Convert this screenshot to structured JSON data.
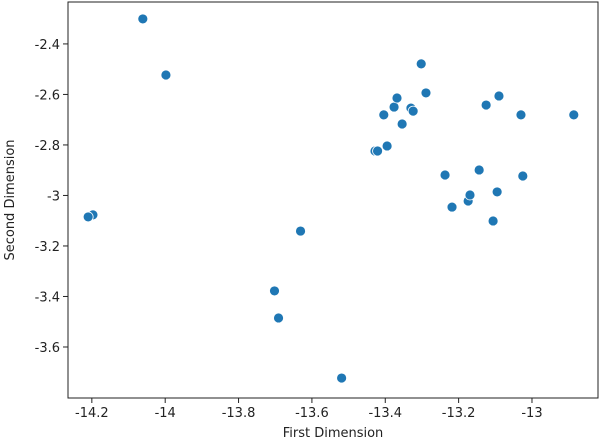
{
  "chart_data": {
    "type": "scatter",
    "xlabel": "First Dimension",
    "ylabel": "Second Dimension",
    "color": "#1f77b4",
    "x": [
      -14.061,
      -13.998,
      -14.197,
      -14.21,
      -13.631,
      -13.702,
      -13.691,
      -13.519,
      -13.428,
      -13.421,
      -13.395,
      -13.404,
      -13.376,
      -13.368,
      -13.354,
      -13.33,
      -13.324,
      -13.302,
      -13.289,
      -13.237,
      -13.218,
      -13.174,
      -13.169,
      -13.144,
      -13.125,
      -13.09,
      -13.095,
      -13.106,
      -13.03,
      -13.025,
      -12.886
    ],
    "y": [
      -2.301,
      -2.523,
      -3.077,
      -3.085,
      -3.141,
      -3.378,
      -3.485,
      -3.723,
      -2.824,
      -2.824,
      -2.804,
      -2.681,
      -2.65,
      -2.614,
      -2.717,
      -2.654,
      -2.666,
      -2.479,
      -2.594,
      -2.919,
      -3.046,
      -3.022,
      -2.998,
      -2.899,
      -2.642,
      -2.606,
      -2.986,
      -3.101,
      -2.681,
      -2.923,
      -2.681
    ],
    "xlim": [
      -14.265,
      -12.82
    ],
    "ylim": [
      -3.802,
      -2.234
    ],
    "xticks": [
      -14.2,
      -14.0,
      -13.8,
      -13.6,
      -13.4,
      -13.2,
      -13.0
    ],
    "yticks": [
      -2.4,
      -2.6,
      -2.8,
      -3.0,
      -3.2,
      -3.4,
      -3.6
    ]
  }
}
